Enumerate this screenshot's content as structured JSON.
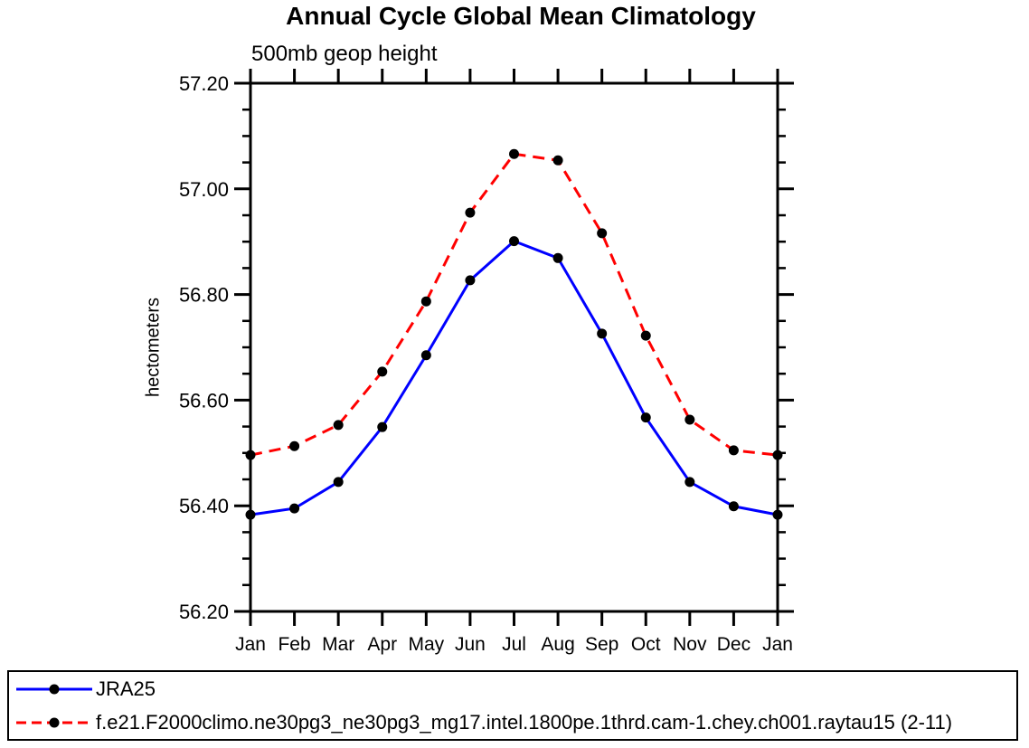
{
  "page": {
    "background_color": "#ffffff",
    "axis_color": "#000000"
  },
  "chart_data": {
    "type": "line",
    "title": "Annual Cycle Global Mean Climatology",
    "subtitle": "500mb geop height",
    "ylabel": "hectometers",
    "xlabel": "",
    "categories": [
      "Jan",
      "Feb",
      "Mar",
      "Apr",
      "May",
      "Jun",
      "Jul",
      "Aug",
      "Sep",
      "Oct",
      "Nov",
      "Dec",
      "Jan"
    ],
    "ylim": [
      56.2,
      57.2
    ],
    "y_major_step": 0.2,
    "y_minor_step": 0.05,
    "y_tick_labels": [
      "56.20",
      "56.40",
      "56.60",
      "56.80",
      "57.00",
      "57.20"
    ],
    "grid": false,
    "legend_position": "bottom-left-box",
    "marker": {
      "shape": "circle",
      "color": "#000000",
      "radius": 5.5
    },
    "series": [
      {
        "name": "JRA25",
        "color": "#0000ff",
        "line_style": "solid",
        "values": [
          56.383,
          56.395,
          56.445,
          56.549,
          56.685,
          56.827,
          56.901,
          56.869,
          56.726,
          56.567,
          56.445,
          56.399,
          56.383
        ]
      },
      {
        "name": "f.e21.F2000climo.ne30pg3_ne30pg3_mg17.intel.1800pe.1thrd.cam-1.chey.ch001.raytau15 (2-11)",
        "color": "#ff0000",
        "line_style": "dashed",
        "values": [
          56.496,
          56.513,
          56.553,
          56.654,
          56.787,
          56.955,
          57.066,
          57.054,
          56.916,
          56.722,
          56.563,
          56.505,
          56.496
        ]
      }
    ]
  }
}
